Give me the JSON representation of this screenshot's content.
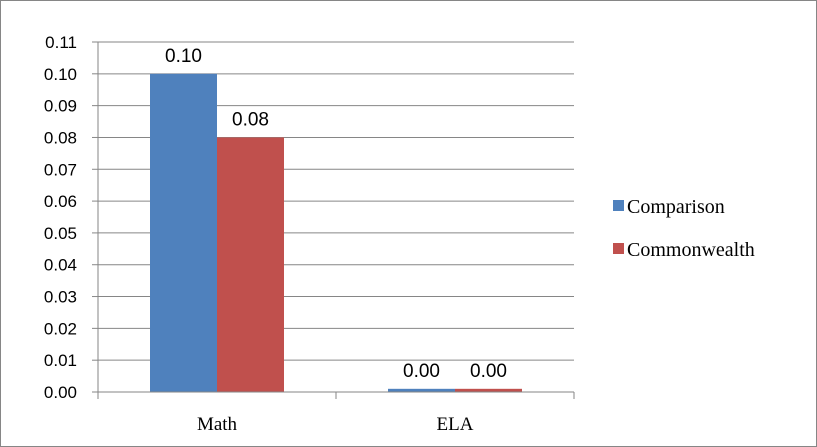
{
  "chart_data": {
    "type": "bar",
    "categories": [
      "Math",
      "ELA"
    ],
    "series": [
      {
        "name": "Comparison",
        "values": [
          0.1,
          0.001
        ],
        "labels": [
          "0.10",
          "0.00"
        ]
      },
      {
        "name": "Commonwealth",
        "values": [
          0.08,
          0.001
        ],
        "labels": [
          "0.08",
          "0.00"
        ]
      }
    ],
    "yticks": [
      "0.00",
      "0.01",
      "0.02",
      "0.03",
      "0.04",
      "0.05",
      "0.06",
      "0.07",
      "0.08",
      "0.09",
      "0.10",
      "0.11"
    ],
    "ylim": [
      0,
      0.11
    ],
    "grid": true,
    "legend_position": "right",
    "colors": {
      "Comparison": "#4f81bd",
      "Commonwealth": "#c0504d",
      "grid": "#868686"
    }
  }
}
